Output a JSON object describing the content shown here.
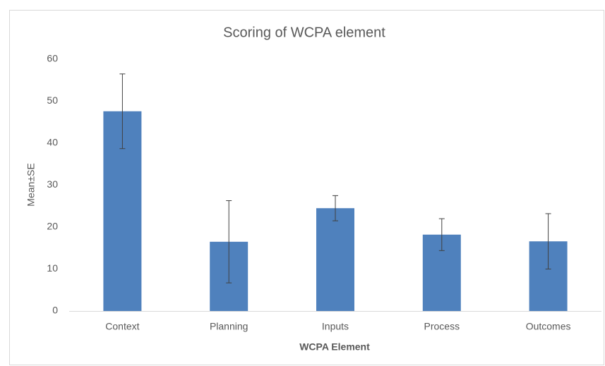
{
  "chart_data": {
    "type": "bar",
    "title": "Scoring of WCPA element",
    "x_label": "WCPA Element",
    "y_label": "Mean±SE",
    "categories": [
      "Context",
      "Planning",
      "Inputs",
      "Process",
      "Outcomes"
    ],
    "values": [
      47.6,
      16.5,
      24.5,
      18.2,
      16.6
    ],
    "errors": [
      8.9,
      9.8,
      3.0,
      3.8,
      6.6
    ],
    "color": "#4f81bd",
    "ylim": [
      0,
      60
    ],
    "yticks": [
      0,
      10,
      20,
      30,
      40,
      50,
      60
    ],
    "grid": false
  }
}
